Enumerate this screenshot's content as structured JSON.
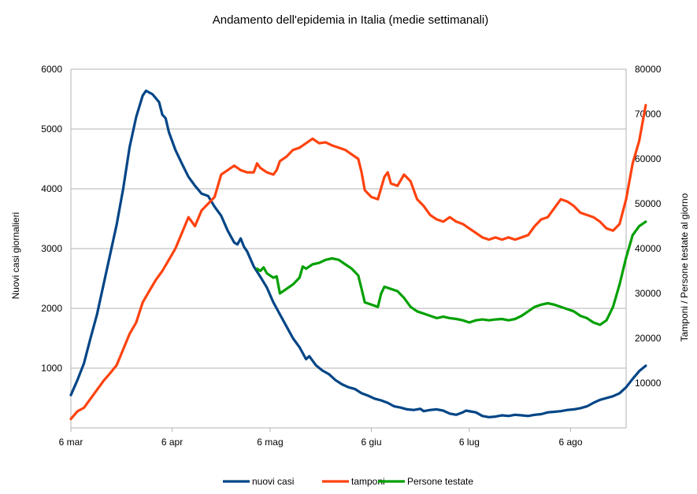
{
  "chart_data": {
    "type": "line",
    "title": "Andamento dell'epidemia in Italia (medie settimanali)",
    "ylabel_left": "Nuovi casi giornalieri",
    "ylabel_right": "Tamponi / Persone testate al giorno",
    "x_domain_days": [
      0,
      170
    ],
    "x_ticks": [
      {
        "label": "6 mar",
        "day": 0
      },
      {
        "label": "6 apr",
        "day": 31
      },
      {
        "label": "6 mag",
        "day": 61
      },
      {
        "label": "6 giu",
        "day": 92
      },
      {
        "label": "6 lug",
        "day": 122
      },
      {
        "label": "6 ago",
        "day": 153
      }
    ],
    "y_left": {
      "min": 0,
      "max": 6000,
      "ticks": [
        "1000",
        "2000",
        "3000",
        "4000",
        "5000",
        "6000"
      ],
      "tick_values": [
        1000,
        2000,
        3000,
        4000,
        5000,
        6000
      ]
    },
    "y_right": {
      "min": 0,
      "max": 80000,
      "ticks": [
        "10000",
        "20000",
        "30000",
        "40000",
        "50000",
        "60000",
        "70000",
        "80000"
      ],
      "tick_values": [
        10000,
        20000,
        30000,
        40000,
        50000,
        60000,
        70000,
        80000
      ]
    },
    "grid": true,
    "legend_position": "bottom",
    "series": [
      {
        "name": "nuovi casi",
        "axis": "left",
        "color": "#004586",
        "points": [
          [
            0,
            550
          ],
          [
            2,
            800
          ],
          [
            4,
            1080
          ],
          [
            6,
            1500
          ],
          [
            8,
            1900
          ],
          [
            10,
            2400
          ],
          [
            12,
            2900
          ],
          [
            14,
            3400
          ],
          [
            16,
            4000
          ],
          [
            18,
            4700
          ],
          [
            20,
            5200
          ],
          [
            22,
            5560
          ],
          [
            23,
            5640
          ],
          [
            25,
            5580
          ],
          [
            27,
            5450
          ],
          [
            28,
            5240
          ],
          [
            29,
            5180
          ],
          [
            30,
            4950
          ],
          [
            32,
            4650
          ],
          [
            34,
            4420
          ],
          [
            36,
            4200
          ],
          [
            38,
            4050
          ],
          [
            40,
            3920
          ],
          [
            42,
            3880
          ],
          [
            44,
            3700
          ],
          [
            46,
            3550
          ],
          [
            48,
            3300
          ],
          [
            50,
            3100
          ],
          [
            51,
            3070
          ],
          [
            52,
            3170
          ],
          [
            53,
            3030
          ],
          [
            54,
            2950
          ],
          [
            56,
            2700
          ],
          [
            58,
            2530
          ],
          [
            60,
            2350
          ],
          [
            62,
            2100
          ],
          [
            64,
            1900
          ],
          [
            66,
            1700
          ],
          [
            68,
            1500
          ],
          [
            70,
            1350
          ],
          [
            72,
            1150
          ],
          [
            73,
            1200
          ],
          [
            75,
            1050
          ],
          [
            77,
            960
          ],
          [
            79,
            900
          ],
          [
            81,
            800
          ],
          [
            83,
            730
          ],
          [
            85,
            680
          ],
          [
            87,
            650
          ],
          [
            89,
            580
          ],
          [
            91,
            540
          ],
          [
            93,
            490
          ],
          [
            95,
            460
          ],
          [
            97,
            420
          ],
          [
            99,
            360
          ],
          [
            101,
            340
          ],
          [
            103,
            310
          ],
          [
            105,
            300
          ],
          [
            107,
            320
          ],
          [
            108,
            280
          ],
          [
            110,
            300
          ],
          [
            112,
            310
          ],
          [
            114,
            290
          ],
          [
            116,
            240
          ],
          [
            118,
            220
          ],
          [
            120,
            260
          ],
          [
            121,
            290
          ],
          [
            123,
            270
          ],
          [
            124,
            260
          ],
          [
            126,
            200
          ],
          [
            128,
            180
          ],
          [
            130,
            190
          ],
          [
            132,
            210
          ],
          [
            134,
            200
          ],
          [
            136,
            220
          ],
          [
            138,
            210
          ],
          [
            140,
            200
          ],
          [
            142,
            220
          ],
          [
            144,
            230
          ],
          [
            146,
            260
          ],
          [
            148,
            270
          ],
          [
            150,
            280
          ],
          [
            152,
            300
          ],
          [
            154,
            310
          ],
          [
            156,
            330
          ],
          [
            158,
            360
          ],
          [
            160,
            420
          ],
          [
            162,
            470
          ],
          [
            164,
            500
          ],
          [
            166,
            530
          ],
          [
            168,
            580
          ],
          [
            170,
            680
          ],
          [
            172,
            820
          ],
          [
            174,
            950
          ],
          [
            176,
            1040
          ]
        ]
      },
      {
        "name": "tamponi",
        "axis": "right",
        "color": "#ff420e",
        "points": [
          [
            0,
            2000
          ],
          [
            2,
            3700
          ],
          [
            4,
            4500
          ],
          [
            6,
            6500
          ],
          [
            8,
            8500
          ],
          [
            10,
            10500
          ],
          [
            12,
            12200
          ],
          [
            14,
            14000
          ],
          [
            16,
            17500
          ],
          [
            18,
            21000
          ],
          [
            20,
            23500
          ],
          [
            22,
            28000
          ],
          [
            24,
            30500
          ],
          [
            26,
            33000
          ],
          [
            28,
            35000
          ],
          [
            30,
            37500
          ],
          [
            32,
            40000
          ],
          [
            34,
            43500
          ],
          [
            36,
            47000
          ],
          [
            38,
            45000
          ],
          [
            40,
            48500
          ],
          [
            42,
            50000
          ],
          [
            44,
            51500
          ],
          [
            46,
            56500
          ],
          [
            48,
            57500
          ],
          [
            50,
            58500
          ],
          [
            52,
            57500
          ],
          [
            54,
            57000
          ],
          [
            56,
            57000
          ],
          [
            57,
            59000
          ],
          [
            58,
            58000
          ],
          [
            60,
            57000
          ],
          [
            62,
            56500
          ],
          [
            63,
            57500
          ],
          [
            64,
            59500
          ],
          [
            66,
            60500
          ],
          [
            68,
            62000
          ],
          [
            70,
            62500
          ],
          [
            72,
            63500
          ],
          [
            74,
            64500
          ],
          [
            76,
            63500
          ],
          [
            78,
            63700
          ],
          [
            80,
            63000
          ],
          [
            82,
            62500
          ],
          [
            84,
            62000
          ],
          [
            86,
            61000
          ],
          [
            88,
            60000
          ],
          [
            89,
            57000
          ],
          [
            90,
            53000
          ],
          [
            92,
            51500
          ],
          [
            94,
            51000
          ],
          [
            96,
            56000
          ],
          [
            97,
            57000
          ],
          [
            98,
            54500
          ],
          [
            100,
            54000
          ],
          [
            102,
            56500
          ],
          [
            104,
            55000
          ],
          [
            106,
            51000
          ],
          [
            108,
            49500
          ],
          [
            110,
            47500
          ],
          [
            112,
            46500
          ],
          [
            114,
            46000
          ],
          [
            116,
            47000
          ],
          [
            118,
            46000
          ],
          [
            120,
            45500
          ],
          [
            122,
            44500
          ],
          [
            124,
            43500
          ],
          [
            126,
            42500
          ],
          [
            128,
            42000
          ],
          [
            130,
            42500
          ],
          [
            132,
            42000
          ],
          [
            134,
            42500
          ],
          [
            136,
            42000
          ],
          [
            138,
            42500
          ],
          [
            140,
            43000
          ],
          [
            142,
            45000
          ],
          [
            144,
            46500
          ],
          [
            146,
            47000
          ],
          [
            148,
            49000
          ],
          [
            150,
            51000
          ],
          [
            152,
            50500
          ],
          [
            154,
            49500
          ],
          [
            156,
            48000
          ],
          [
            158,
            47500
          ],
          [
            160,
            47000
          ],
          [
            162,
            46000
          ],
          [
            164,
            44500
          ],
          [
            166,
            44000
          ],
          [
            168,
            45500
          ],
          [
            170,
            51000
          ],
          [
            172,
            59000
          ],
          [
            174,
            64000
          ],
          [
            176,
            72000
          ]
        ]
      },
      {
        "name": "Persone testate",
        "axis": "right",
        "color": "#00a000",
        "points": [
          [
            57,
            35500
          ],
          [
            58,
            35000
          ],
          [
            59,
            35800
          ],
          [
            60,
            34500
          ],
          [
            62,
            33500
          ],
          [
            63,
            33800
          ],
          [
            64,
            30000
          ],
          [
            66,
            31000
          ],
          [
            68,
            32000
          ],
          [
            70,
            33500
          ],
          [
            71,
            36000
          ],
          [
            72,
            35500
          ],
          [
            74,
            36500
          ],
          [
            76,
            36800
          ],
          [
            78,
            37500
          ],
          [
            80,
            37800
          ],
          [
            82,
            37500
          ],
          [
            84,
            36500
          ],
          [
            86,
            35500
          ],
          [
            88,
            34000
          ],
          [
            89,
            31000
          ],
          [
            90,
            28000
          ],
          [
            92,
            27500
          ],
          [
            94,
            27000
          ],
          [
            95,
            30000
          ],
          [
            96,
            31500
          ],
          [
            98,
            31000
          ],
          [
            100,
            30500
          ],
          [
            102,
            29000
          ],
          [
            104,
            27000
          ],
          [
            106,
            26000
          ],
          [
            108,
            25500
          ],
          [
            110,
            25000
          ],
          [
            112,
            24500
          ],
          [
            114,
            24800
          ],
          [
            116,
            24500
          ],
          [
            118,
            24300
          ],
          [
            120,
            24000
          ],
          [
            122,
            23500
          ],
          [
            124,
            24000
          ],
          [
            126,
            24200
          ],
          [
            128,
            24000
          ],
          [
            130,
            24200
          ],
          [
            132,
            24300
          ],
          [
            134,
            24000
          ],
          [
            136,
            24300
          ],
          [
            138,
            25000
          ],
          [
            140,
            26000
          ],
          [
            142,
            27000
          ],
          [
            144,
            27500
          ],
          [
            146,
            27800
          ],
          [
            148,
            27500
          ],
          [
            150,
            27000
          ],
          [
            152,
            26500
          ],
          [
            154,
            26000
          ],
          [
            156,
            25000
          ],
          [
            158,
            24500
          ],
          [
            160,
            23500
          ],
          [
            162,
            23000
          ],
          [
            164,
            24000
          ],
          [
            166,
            27000
          ],
          [
            168,
            32000
          ],
          [
            170,
            38000
          ],
          [
            172,
            43000
          ],
          [
            174,
            45000
          ],
          [
            176,
            46000
          ]
        ]
      }
    ]
  }
}
